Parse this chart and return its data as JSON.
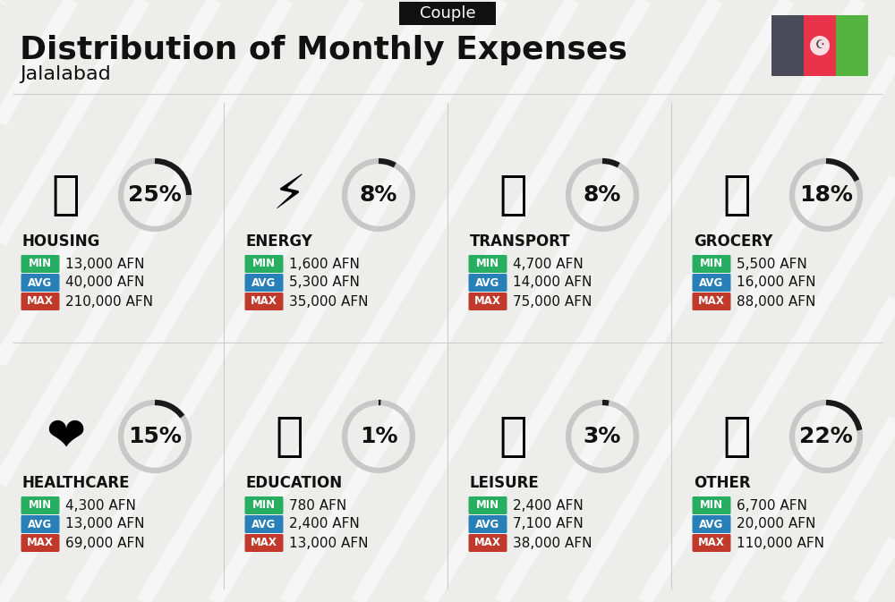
{
  "title": "Distribution of Monthly Expenses",
  "subtitle": "Jalalabad",
  "header_label": "Couple",
  "background_color": "#ededec",
  "categories": [
    {
      "name": "HOUSING",
      "percent": 25,
      "min": "13,000 AFN",
      "avg": "40,000 AFN",
      "max": "210,000 AFN",
      "col": 0,
      "row": 0
    },
    {
      "name": "ENERGY",
      "percent": 8,
      "min": "1,600 AFN",
      "avg": "5,300 AFN",
      "max": "35,000 AFN",
      "col": 1,
      "row": 0
    },
    {
      "name": "TRANSPORT",
      "percent": 8,
      "min": "4,700 AFN",
      "avg": "14,000 AFN",
      "max": "75,000 AFN",
      "col": 2,
      "row": 0
    },
    {
      "name": "GROCERY",
      "percent": 18,
      "min": "5,500 AFN",
      "avg": "16,000 AFN",
      "max": "88,000 AFN",
      "col": 3,
      "row": 0
    },
    {
      "name": "HEALTHCARE",
      "percent": 15,
      "min": "4,300 AFN",
      "avg": "13,000 AFN",
      "max": "69,000 AFN",
      "col": 0,
      "row": 1
    },
    {
      "name": "EDUCATION",
      "percent": 1,
      "min": "780 AFN",
      "avg": "2,400 AFN",
      "max": "13,000 AFN",
      "col": 1,
      "row": 1
    },
    {
      "name": "LEISURE",
      "percent": 3,
      "min": "2,400 AFN",
      "avg": "7,100 AFN",
      "max": "38,000 AFN",
      "col": 2,
      "row": 1
    },
    {
      "name": "OTHER",
      "percent": 22,
      "min": "6,700 AFN",
      "avg": "20,000 AFN",
      "max": "110,000 AFN",
      "col": 3,
      "row": 1
    }
  ],
  "min_color": "#27ae60",
  "avg_color": "#2980b9",
  "max_color": "#c0392b",
  "arc_color_filled": "#1a1a1a",
  "arc_color_empty": "#c8c8c8",
  "title_fontsize": 26,
  "subtitle_fontsize": 16,
  "header_fontsize": 13,
  "category_fontsize": 12,
  "value_fontsize": 11,
  "percent_fontsize": 18,
  "flag_black": "#4a4a5a",
  "flag_red": "#e8334a",
  "flag_green": "#55b43f"
}
